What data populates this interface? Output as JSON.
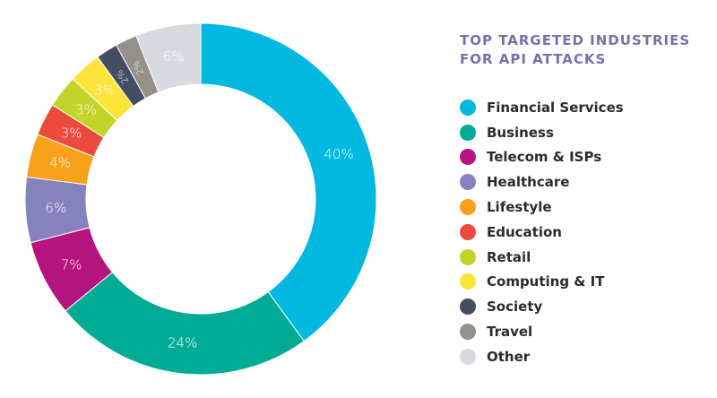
{
  "chart_data": {
    "type": "pie",
    "variant": "donut",
    "title_lines": [
      "TOP TARGETED INDUSTRIES",
      "FOR API ATTACKS"
    ],
    "legend_position": "right",
    "categories": [
      "Financial Services",
      "Business",
      "Telecom & ISPs",
      "Healthcare",
      "Lifestyle",
      "Education",
      "Retail",
      "Computing & IT",
      "Society",
      "Travel",
      "Other"
    ],
    "values": [
      40,
      24,
      7,
      6,
      4,
      3,
      3,
      3,
      2,
      2,
      6
    ],
    "value_labels": [
      "40%",
      "24%",
      "7%",
      "6%",
      "4%",
      "3%",
      "3%",
      "3%",
      "2%",
      "2%",
      "6%"
    ],
    "unit": "%",
    "colors": [
      "#00b8e0",
      "#00ab96",
      "#b5137d",
      "#8582bd",
      "#f8a21b",
      "#ec4a3d",
      "#c3d429",
      "#fde33a",
      "#444e63",
      "#95908a",
      "#d8dae0"
    ]
  }
}
